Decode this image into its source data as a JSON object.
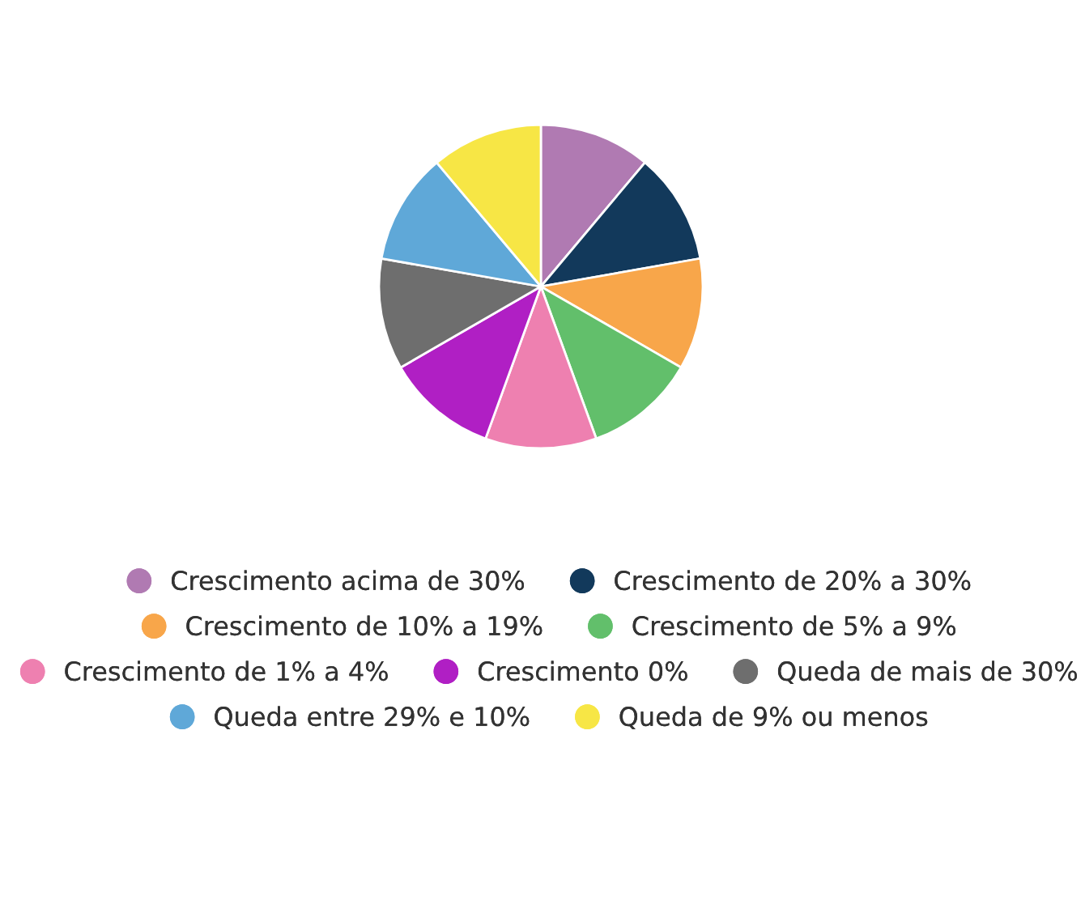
{
  "chart_data": {
    "type": "pie",
    "categories": [
      "Crescimento acima de 30%",
      "Crescimento de 20% a 30%",
      "Crescimento de 10% a 19%",
      "Crescimento de 5% a 9%",
      "Crescimento de 1% a 4%",
      "Crescimento 0%",
      "Queda de mais de 30%",
      "Queda entre 29% e 10%",
      "Queda de 9% ou menos"
    ],
    "values": [
      11.11,
      11.11,
      11.11,
      11.11,
      11.11,
      11.11,
      11.11,
      11.11,
      11.12
    ],
    "colors": [
      "#b07ab2",
      "#12395b",
      "#f8a64a",
      "#62bf6b",
      "#ee80b0",
      "#b01fc4",
      "#6e6e6e",
      "#5fa8d8",
      "#f7e645"
    ],
    "legend": "bottom"
  }
}
